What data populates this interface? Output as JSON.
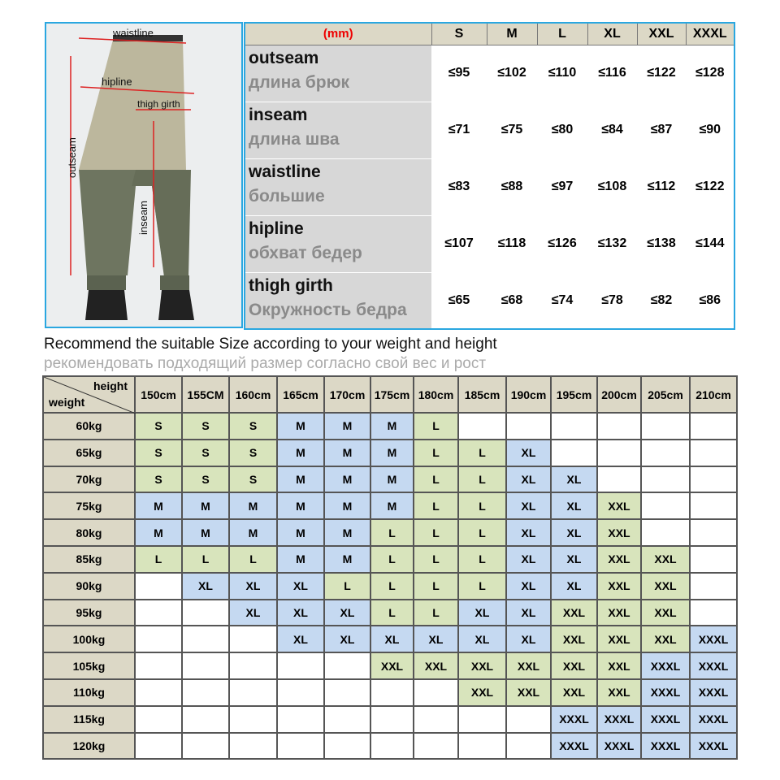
{
  "figure": {
    "labels": {
      "waistline": "waistline",
      "hipline": "hipline",
      "thigh_girth": "thigh girth",
      "outseam": "outseam",
      "inseam": "inseam"
    }
  },
  "measurements": {
    "unit_label": "(mm)",
    "sizes": [
      "S",
      "M",
      "L",
      "XL",
      "XXL",
      "XXXL"
    ],
    "rows": [
      {
        "en": "outseam",
        "ru": "длина брюк",
        "values": [
          "≤95",
          "≤102",
          "≤110",
          "≤116",
          "≤122",
          "≤128"
        ]
      },
      {
        "en": "inseam",
        "ru": "длина шва",
        "values": [
          "≤71",
          "≤75",
          "≤80",
          "≤84",
          "≤87",
          "≤90"
        ]
      },
      {
        "en": "waistline",
        "ru": "большие",
        "values": [
          "≤83",
          "≤88",
          "≤97",
          "≤108",
          "≤112",
          "≤122"
        ]
      },
      {
        "en": "hipline",
        "ru": "обхват бедер",
        "values": [
          "≤107",
          "≤118",
          "≤126",
          "≤132",
          "≤138",
          "≤144"
        ]
      },
      {
        "en": "thigh girth",
        "ru": "Окружность бедра",
        "values": [
          "≤65",
          "≤68",
          "≤74",
          "≤78",
          "≤82",
          "≤86"
        ]
      }
    ]
  },
  "recommend": {
    "en": "Recommend the suitable Size according to your weight and height",
    "ru": "рекомендовать подходящий размер согласно свой вес и рост"
  },
  "size_table": {
    "corner_height": "height",
    "corner_weight": "weight",
    "heights": [
      "150cm",
      "155CM",
      "160cm",
      "165cm",
      "170cm",
      "175cm",
      "180cm",
      "185cm",
      "190cm",
      "195cm",
      "200cm",
      "205cm",
      "210cm"
    ],
    "rows": [
      {
        "weight": "60kg",
        "cells": [
          "S",
          "S",
          "S",
          "M",
          "M",
          "M",
          "L",
          "",
          "",
          "",
          "",
          "",
          ""
        ]
      },
      {
        "weight": "65kg",
        "cells": [
          "S",
          "S",
          "S",
          "M",
          "M",
          "M",
          "L",
          "L",
          "XL",
          "",
          "",
          "",
          ""
        ]
      },
      {
        "weight": "70kg",
        "cells": [
          "S",
          "S",
          "S",
          "M",
          "M",
          "M",
          "L",
          "L",
          "XL",
          "XL",
          "",
          "",
          ""
        ]
      },
      {
        "weight": "75kg",
        "cells": [
          "M",
          "M",
          "M",
          "M",
          "M",
          "M",
          "L",
          "L",
          "XL",
          "XL",
          "XXL",
          "",
          ""
        ]
      },
      {
        "weight": "80kg",
        "cells": [
          "M",
          "M",
          "M",
          "M",
          "M",
          "L",
          "L",
          "L",
          "XL",
          "XL",
          "XXL",
          "",
          ""
        ]
      },
      {
        "weight": "85kg",
        "cells": [
          "L",
          "L",
          "L",
          "M",
          "M",
          "L",
          "L",
          "L",
          "XL",
          "XL",
          "XXL",
          "XXL",
          ""
        ]
      },
      {
        "weight": "90kg",
        "cells": [
          "",
          "XL",
          "XL",
          "XL",
          "L",
          "L",
          "L",
          "L",
          "XL",
          "XL",
          "XXL",
          "XXL",
          ""
        ]
      },
      {
        "weight": "95kg",
        "cells": [
          "",
          "",
          "XL",
          "XL",
          "XL",
          "L",
          "L",
          "XL",
          "XL",
          "XXL",
          "XXL",
          "XXL",
          ""
        ]
      },
      {
        "weight": "100kg",
        "cells": [
          "",
          "",
          "",
          "XL",
          "XL",
          "XL",
          "XL",
          "XL",
          "XL",
          "XXL",
          "XXL",
          "XXL",
          "XXXL"
        ]
      },
      {
        "weight": "105kg",
        "cells": [
          "",
          "",
          "",
          "",
          "",
          "XXL",
          "XXL",
          "XXL",
          "XXL",
          "XXL",
          "XXL",
          "XXXL",
          "XXXL"
        ]
      },
      {
        "weight": "110kg",
        "cells": [
          "",
          "",
          "",
          "",
          "",
          "",
          "",
          "XXL",
          "XXL",
          "XXL",
          "XXL",
          "XXXL",
          "XXXL"
        ]
      },
      {
        "weight": "115kg",
        "cells": [
          "",
          "",
          "",
          "",
          "",
          "",
          "",
          "",
          "",
          "XXXL",
          "XXXL",
          "XXXL",
          "XXXL"
        ]
      },
      {
        "weight": "120kg",
        "cells": [
          "",
          "",
          "",
          "",
          "",
          "",
          "",
          "",
          "",
          "XXXL",
          "XXXL",
          "XXXL",
          "XXXL"
        ]
      }
    ],
    "colors": {
      "S": "#d8e4bc",
      "L": "#d8e4bc",
      "XXL": "#d8e4bc",
      "M": "#c5d9f1",
      "XL": "#c5d9f1",
      "XXXL": "#c5d9f1",
      "": "#ffffff"
    }
  }
}
